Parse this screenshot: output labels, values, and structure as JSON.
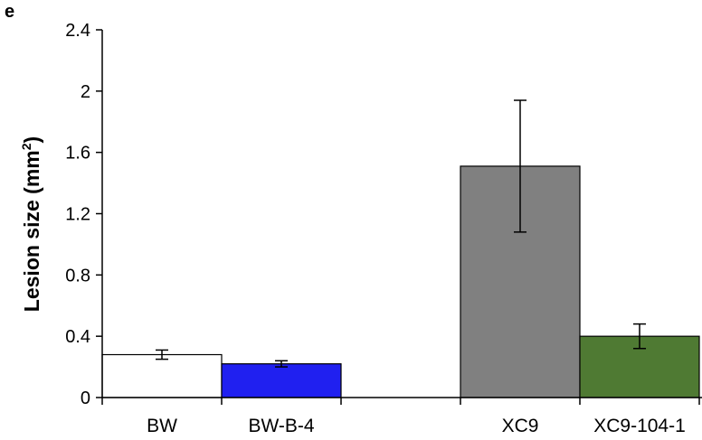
{
  "panel_label": "e",
  "chart_data": {
    "type": "bar",
    "ylabel": "Lesion size (mm",
    "ylabel_sup": "2",
    "ylabel_close": ")",
    "ylim": [
      0,
      2.4
    ],
    "yticks": [
      "0",
      "0.4",
      "0.8",
      "1.2",
      "1.6",
      "2",
      "2.4"
    ],
    "grid": false,
    "categories": [
      "BW",
      "BW-B-4",
      "XC9",
      "XC9-104-1"
    ],
    "values": [
      0.28,
      0.22,
      1.51,
      0.4
    ],
    "errors": [
      0.03,
      0.02,
      0.43,
      0.08
    ],
    "colors": [
      "#ffffff",
      "#2020f0",
      "#808080",
      "#4f7a33"
    ]
  }
}
